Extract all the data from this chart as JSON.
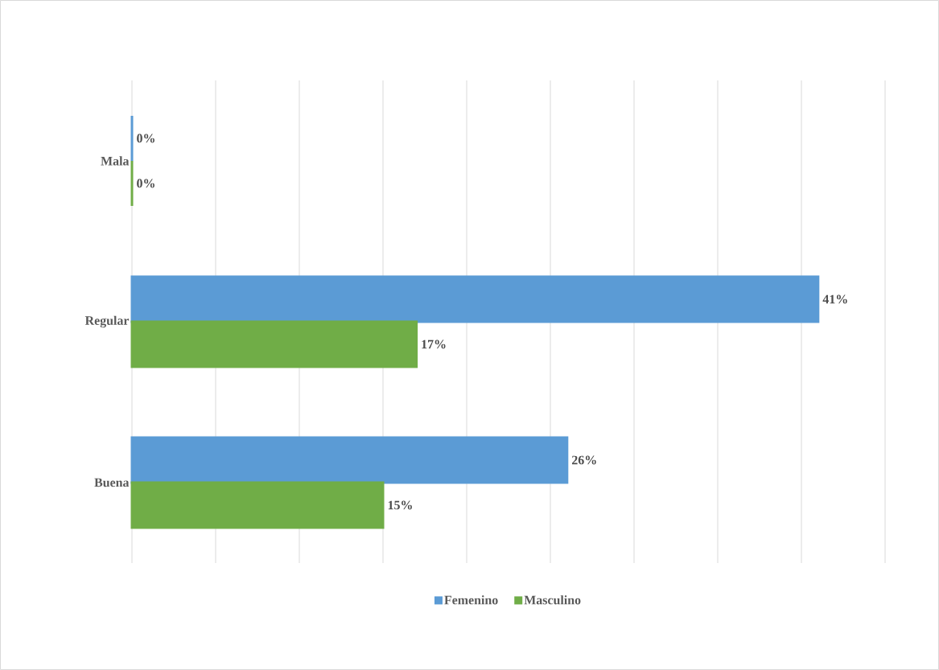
{
  "chart_data": {
    "type": "bar",
    "orientation": "horizontal",
    "categories": [
      "Mala",
      "Regular",
      "Buena"
    ],
    "series": [
      {
        "name": "Femenino",
        "color": "#5b9bd5",
        "values": [
          0,
          41,
          26
        ],
        "value_labels": [
          "0%",
          "41%",
          "26%"
        ]
      },
      {
        "name": "Masculino",
        "color": "#70ad47",
        "values": [
          0,
          17,
          15
        ],
        "value_labels": [
          "0%",
          "17%",
          "15%"
        ]
      }
    ],
    "xlim": [
      0,
      45
    ],
    "xticks": [
      {
        "value": 0,
        "label": null
      },
      {
        "value": 5,
        "label": null
      },
      {
        "value": 10,
        "label": null
      },
      {
        "value": 15,
        "label": null
      },
      {
        "value": 20,
        "label": null
      },
      {
        "value": 25,
        "label": null
      },
      {
        "value": 30,
        "label": null
      },
      {
        "value": 35,
        "label": null
      },
      {
        "value": 40,
        "label": null
      },
      {
        "value": 45,
        "label": null
      }
    ],
    "grid": "x",
    "legend": "bottom",
    "tick_labels": "y"
  }
}
